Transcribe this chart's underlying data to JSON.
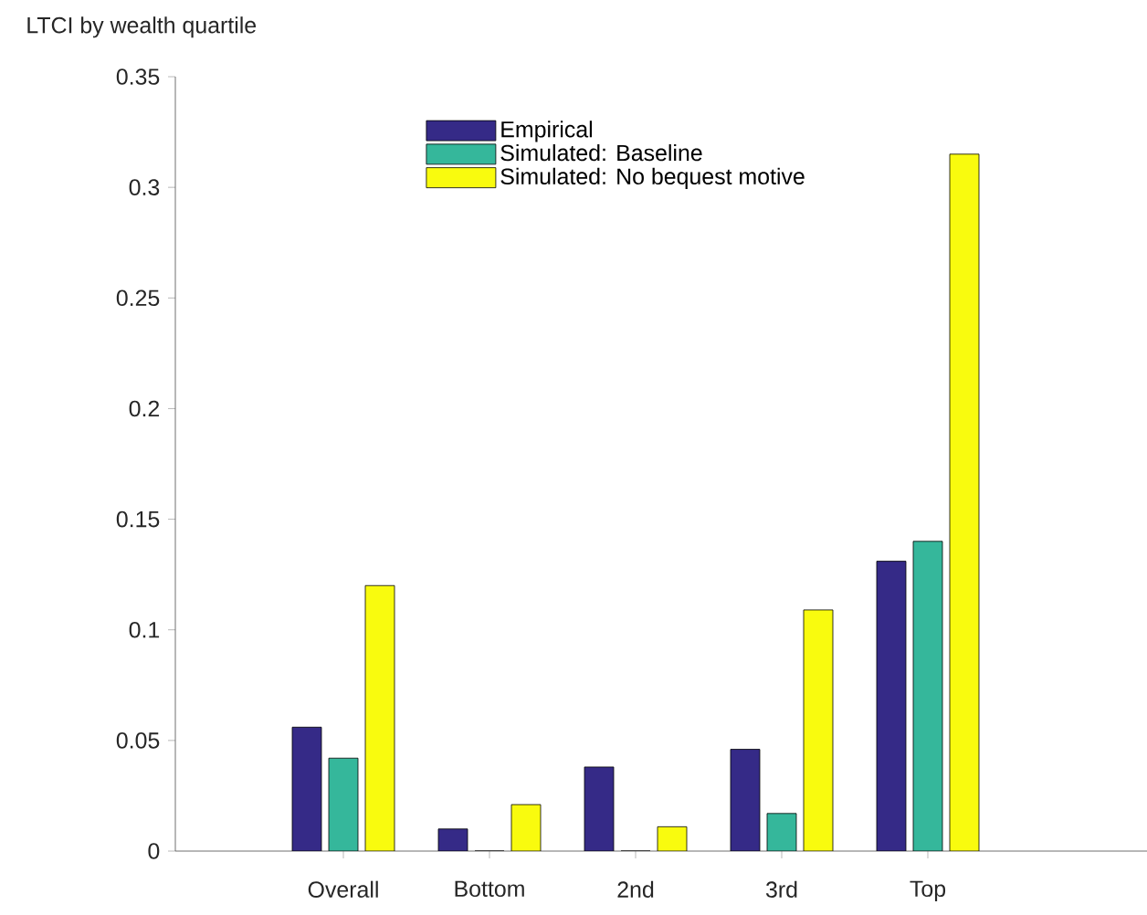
{
  "chart_data": {
    "type": "bar",
    "ylabel": "LTCI by wealth quartile",
    "categories": [
      "Overall",
      "Bottom",
      "2nd",
      "3rd",
      "Top"
    ],
    "series": [
      {
        "name": "Empirical",
        "color": "#352a87",
        "values": [
          0.056,
          0.01,
          0.038,
          0.046,
          0.131
        ]
      },
      {
        "name": "Simulated: Baseline",
        "color": "#35b79b",
        "values": [
          0.042,
          0,
          0,
          0.017,
          0.14
        ]
      },
      {
        "name": "Simulated: No bequest motive",
        "color": "#f9fb0e",
        "values": [
          0.12,
          0.021,
          0.011,
          0.109,
          0.315
        ]
      }
    ],
    "ylim": [
      0,
      0.35
    ],
    "yticks": [
      0,
      0.05,
      0.1,
      0.15,
      0.2,
      0.25,
      0.3,
      0.35
    ],
    "grid": false,
    "legend": "top"
  }
}
